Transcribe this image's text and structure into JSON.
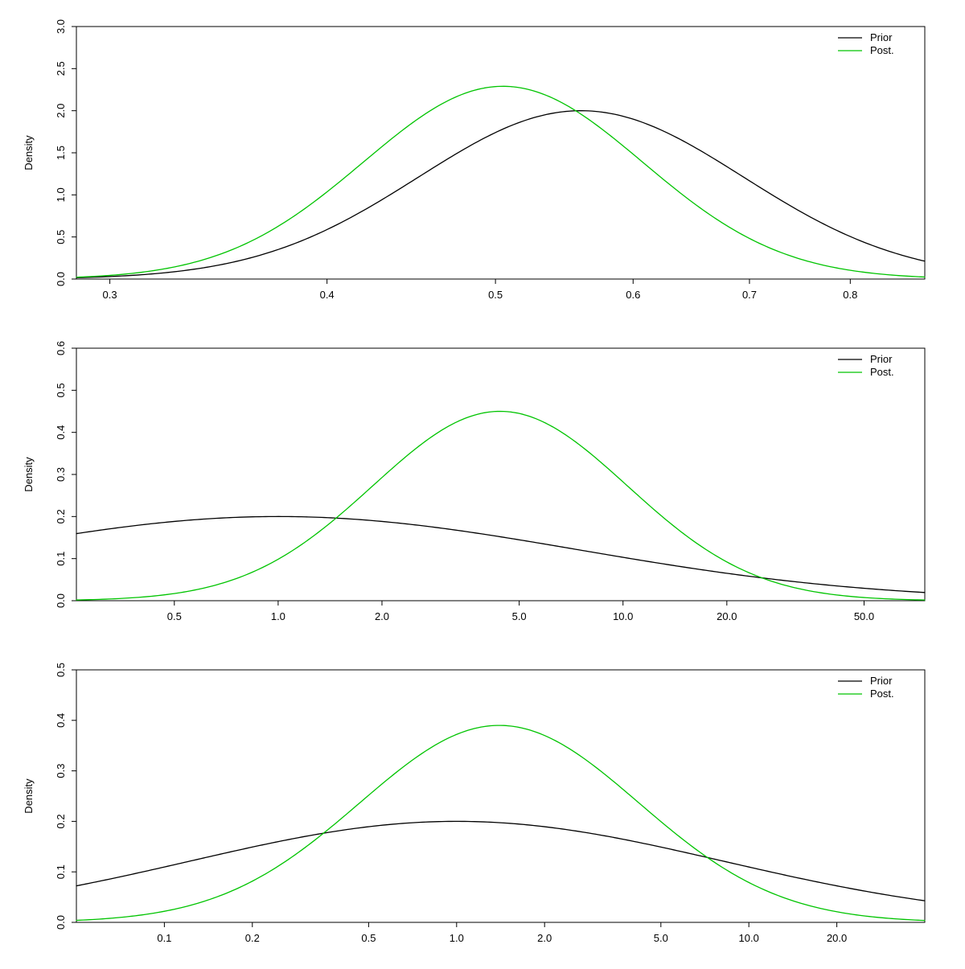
{
  "colors": {
    "prior": "#000000",
    "posterior": "#00C400",
    "axis": "#000000",
    "background": "#ffffff"
  },
  "legend": {
    "prior_label": "Prior",
    "posterior_label": "Post."
  },
  "chart_data": [
    {
      "type": "line",
      "x_scale": "log",
      "title": "",
      "xlabel": "",
      "ylabel": "Density",
      "xlim": [
        0.287,
        0.883
      ],
      "ylim": [
        0,
        3.0
      ],
      "grid": false,
      "legend_position": "top-right",
      "x_ticks": [
        {
          "value": 0.3,
          "label": "0.3"
        },
        {
          "value": 0.4,
          "label": "0.4"
        },
        {
          "value": 0.5,
          "label": "0.5"
        },
        {
          "value": 0.6,
          "label": "0.6"
        },
        {
          "value": 0.7,
          "label": "0.7"
        },
        {
          "value": 0.8,
          "label": "0.8"
        }
      ],
      "y_ticks": [
        "0.0",
        "0.5",
        "1.0",
        "1.5",
        "2.0",
        "2.5",
        "3.0"
      ],
      "series": [
        {
          "name": "Prior",
          "color": "#000000",
          "curve": "gaussian-in-log-x",
          "mode": 0.56,
          "peak": 2.0,
          "log_sd": 0.215
        },
        {
          "name": "Post.",
          "color": "#00C400",
          "curve": "gaussian-in-log-x",
          "mode": 0.505,
          "peak": 2.29,
          "log_sd": 0.185
        }
      ]
    },
    {
      "type": "line",
      "x_scale": "log",
      "title": "",
      "xlabel": "",
      "ylabel": "Density",
      "xlim": [
        0.26,
        75
      ],
      "ylim": [
        0,
        0.6
      ],
      "grid": false,
      "legend_position": "top-right",
      "x_ticks": [
        {
          "value": 0.5,
          "label": "0.5"
        },
        {
          "value": 1.0,
          "label": "1.0"
        },
        {
          "value": 2.0,
          "label": "2.0"
        },
        {
          "value": 5.0,
          "label": "5.0"
        },
        {
          "value": 10.0,
          "label": "10.0"
        },
        {
          "value": 20.0,
          "label": "20.0"
        },
        {
          "value": 50.0,
          "label": "50.0"
        }
      ],
      "y_ticks": [
        "0.0",
        "0.1",
        "0.2",
        "0.3",
        "0.4",
        "0.5",
        "0.6"
      ],
      "series": [
        {
          "name": "Prior",
          "color": "#000000",
          "curve": "gaussian-in-log-x",
          "mode": 1.0,
          "peak": 0.2,
          "log_sd": 2.0
        },
        {
          "name": "Post.",
          "color": "#00C400",
          "curve": "gaussian-in-log-x",
          "mode": 4.4,
          "peak": 0.45,
          "log_sd": 0.85
        }
      ]
    },
    {
      "type": "line",
      "x_scale": "log",
      "title": "",
      "xlabel": "",
      "ylabel": "Density",
      "xlim": [
        0.05,
        40
      ],
      "ylim": [
        0,
        0.5
      ],
      "grid": false,
      "legend_position": "top-right",
      "x_ticks": [
        {
          "value": 0.1,
          "label": "0.1"
        },
        {
          "value": 0.2,
          "label": "0.2"
        },
        {
          "value": 0.5,
          "label": "0.5"
        },
        {
          "value": 1.0,
          "label": "1.0"
        },
        {
          "value": 2.0,
          "label": "2.0"
        },
        {
          "value": 5.0,
          "label": "5.0"
        },
        {
          "value": 10.0,
          "label": "10.0"
        },
        {
          "value": 20.0,
          "label": "20.0"
        }
      ],
      "y_ticks": [
        "0.0",
        "0.1",
        "0.2",
        "0.3",
        "0.4",
        "0.5"
      ],
      "series": [
        {
          "name": "Prior",
          "color": "#000000",
          "curve": "gaussian-in-log-x",
          "mode": 1.0,
          "peak": 0.2,
          "log_sd": 2.1
        },
        {
          "name": "Post.",
          "color": "#00C400",
          "curve": "gaussian-in-log-x",
          "mode": 1.4,
          "peak": 0.39,
          "log_sd": 1.1
        }
      ]
    }
  ]
}
